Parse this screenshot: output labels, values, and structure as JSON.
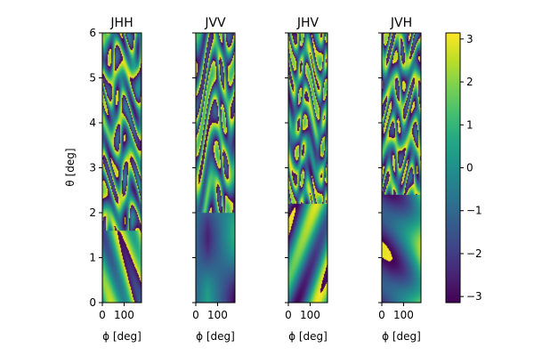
{
  "chart_data": {
    "type": "heatmap",
    "colormap": "viridis",
    "panels": [
      {
        "title": "JHH",
        "xlabel": "ϕ [deg]"
      },
      {
        "title": "JVV",
        "xlabel": "ϕ [deg]"
      },
      {
        "title": "JHV",
        "xlabel": "ϕ [deg]"
      },
      {
        "title": "JVH",
        "xlabel": "ϕ [deg]"
      }
    ],
    "ylabel": "θ [deg]",
    "xlim": [
      0,
      180
    ],
    "ylim": [
      0,
      6
    ],
    "xticks": [
      0,
      100
    ],
    "xtick_labels": [
      "0",
      "100"
    ],
    "yticks": [
      0,
      1,
      2,
      3,
      4,
      5,
      6
    ],
    "ytick_labels": [
      "0",
      "1",
      "2",
      "3",
      "4",
      "5",
      "6"
    ],
    "colorbar": {
      "range": [
        -3.14159,
        3.14159
      ],
      "ticks": [
        -3,
        -2,
        -1,
        0,
        1,
        2,
        3
      ],
      "tick_labels": [
        "−3",
        "−2",
        "−1",
        "0",
        "1",
        "2",
        "3"
      ]
    }
  }
}
